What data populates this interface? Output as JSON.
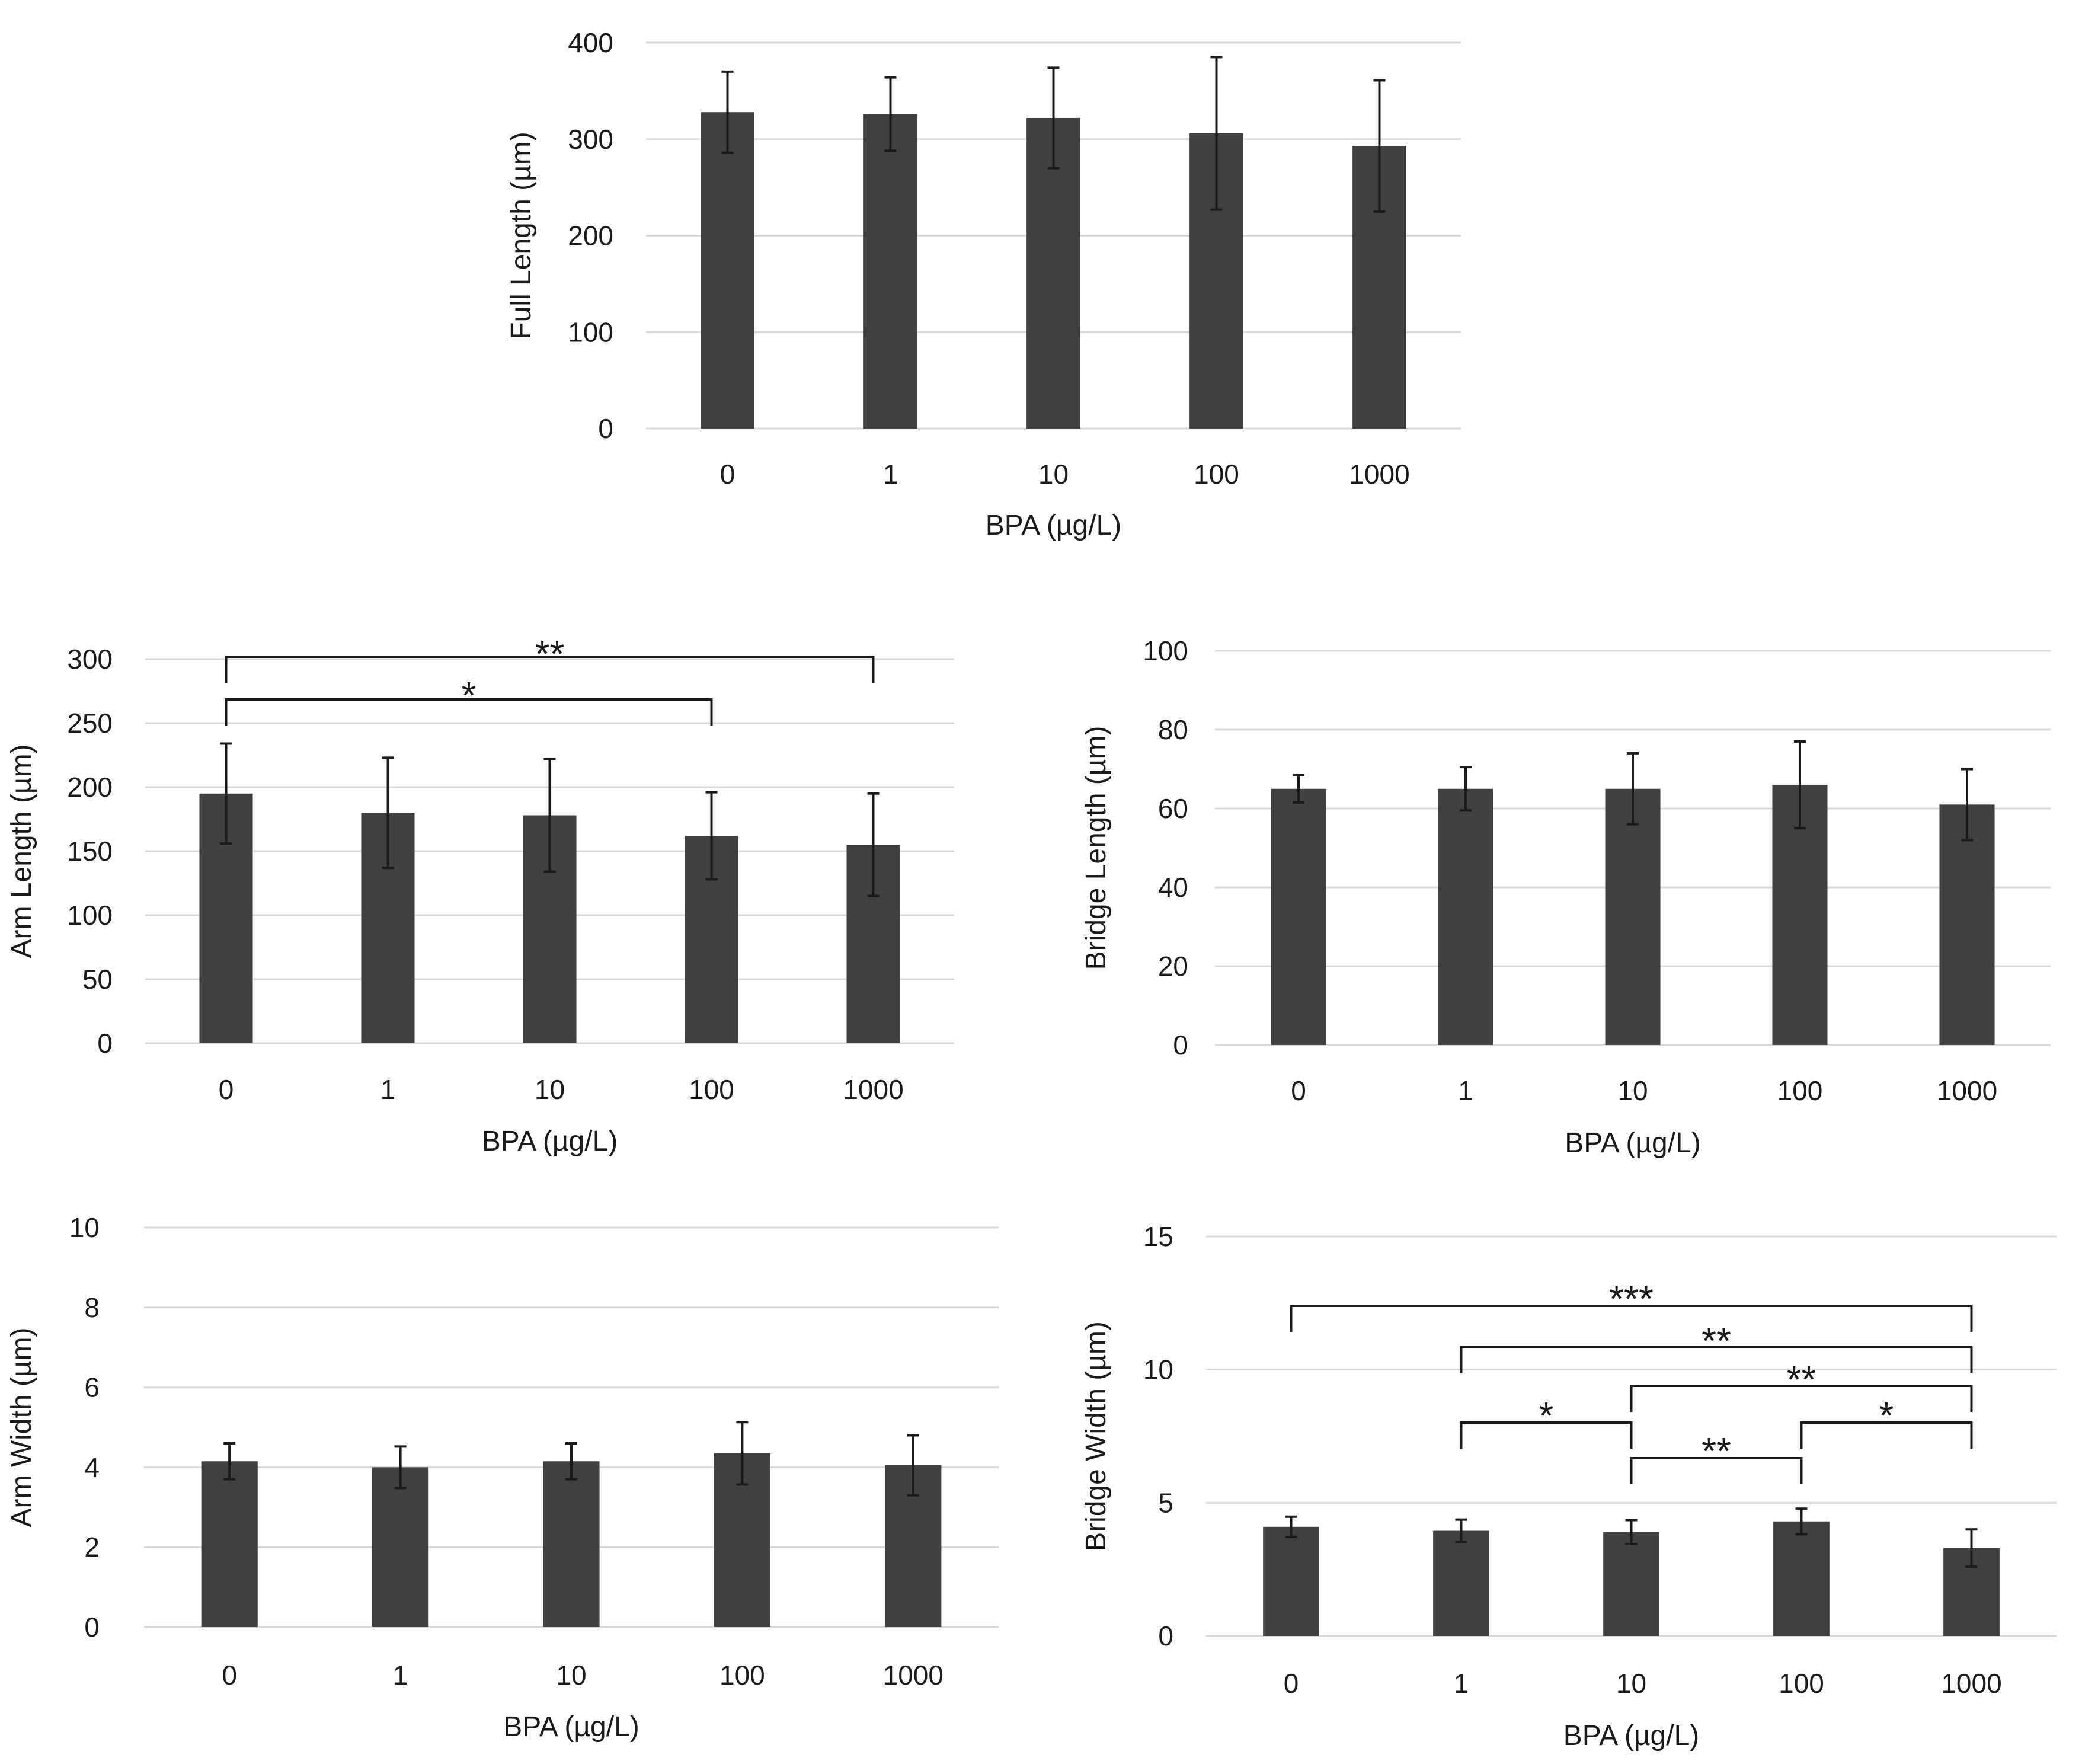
{
  "figure": {
    "colors": {
      "bar": "#404040",
      "grid": "#d9d9d9",
      "bracket": "#1a1a1a",
      "error": "#1a1a1a"
    }
  },
  "chart_data": [
    {
      "id": "full-length",
      "type": "bar",
      "categories": [
        "0",
        "1",
        "10",
        "100",
        "1000"
      ],
      "values": [
        328,
        326,
        322,
        306,
        293
      ],
      "errors": [
        42,
        38,
        52,
        79,
        68
      ],
      "xlabel": "BPA (µg/L)",
      "ylabel": "Full Length (µm)",
      "ylim": [
        0,
        400
      ],
      "yticks": [
        0,
        100,
        200,
        300,
        400
      ],
      "grid": true,
      "significance": []
    },
    {
      "id": "arm-length",
      "type": "bar",
      "categories": [
        "0",
        "1",
        "10",
        "100",
        "1000"
      ],
      "values": [
        195,
        180,
        178,
        162,
        155
      ],
      "errors": [
        39,
        43,
        44,
        34,
        40
      ],
      "xlabel": "BPA (µg/L)",
      "ylabel": "Arm Length (µm)",
      "ylim": [
        0,
        300
      ],
      "yticks": [
        0,
        50,
        100,
        150,
        200,
        250,
        300
      ],
      "grid": true,
      "significance": [
        {
          "from": 0,
          "to": 4,
          "label": "**"
        },
        {
          "from": 0,
          "to": 3,
          "label": "*"
        }
      ]
    },
    {
      "id": "bridge-length",
      "type": "bar",
      "categories": [
        "0",
        "1",
        "10",
        "100",
        "1000"
      ],
      "values": [
        65,
        65,
        65,
        66,
        61
      ],
      "errors": [
        3.5,
        5.5,
        9,
        11,
        9
      ],
      "xlabel": "BPA (µg/L)",
      "ylabel": "Bridge Length (µm)",
      "ylim": [
        0,
        100
      ],
      "yticks": [
        0,
        20,
        40,
        60,
        80,
        100
      ],
      "grid": true,
      "significance": []
    },
    {
      "id": "arm-width",
      "type": "bar",
      "categories": [
        "0",
        "1",
        "10",
        "100",
        "1000"
      ],
      "values": [
        4.15,
        4.0,
        4.15,
        4.35,
        4.05
      ],
      "errors": [
        0.45,
        0.52,
        0.45,
        0.78,
        0.75
      ],
      "xlabel": "BPA (µg/L)",
      "ylabel": "Arm Width (µm)",
      "ylim": [
        0,
        10
      ],
      "yticks": [
        0,
        2,
        4,
        6,
        8,
        10
      ],
      "grid": true,
      "significance": []
    },
    {
      "id": "bridge-width",
      "type": "bar",
      "categories": [
        "0",
        "1",
        "10",
        "100",
        "1000"
      ],
      "values": [
        4.1,
        3.95,
        3.9,
        4.3,
        3.3
      ],
      "errors": [
        0.38,
        0.42,
        0.45,
        0.48,
        0.7
      ],
      "xlabel": "BPA (µg/L)",
      "ylabel": "Bridge Width (µm)",
      "ylim": [
        0,
        15
      ],
      "yticks": [
        0,
        5,
        10,
        15
      ],
      "grid": true,
      "significance": [
        {
          "from": 0,
          "to": 4,
          "label": "***"
        },
        {
          "from": 1,
          "to": 4,
          "label": "**"
        },
        {
          "from": 2,
          "to": 4,
          "label": "**"
        },
        {
          "from": 1,
          "to": 2,
          "label": "*"
        },
        {
          "from": 3,
          "to": 4,
          "label": "*"
        },
        {
          "from": 2,
          "to": 3,
          "label": "**"
        }
      ]
    }
  ]
}
